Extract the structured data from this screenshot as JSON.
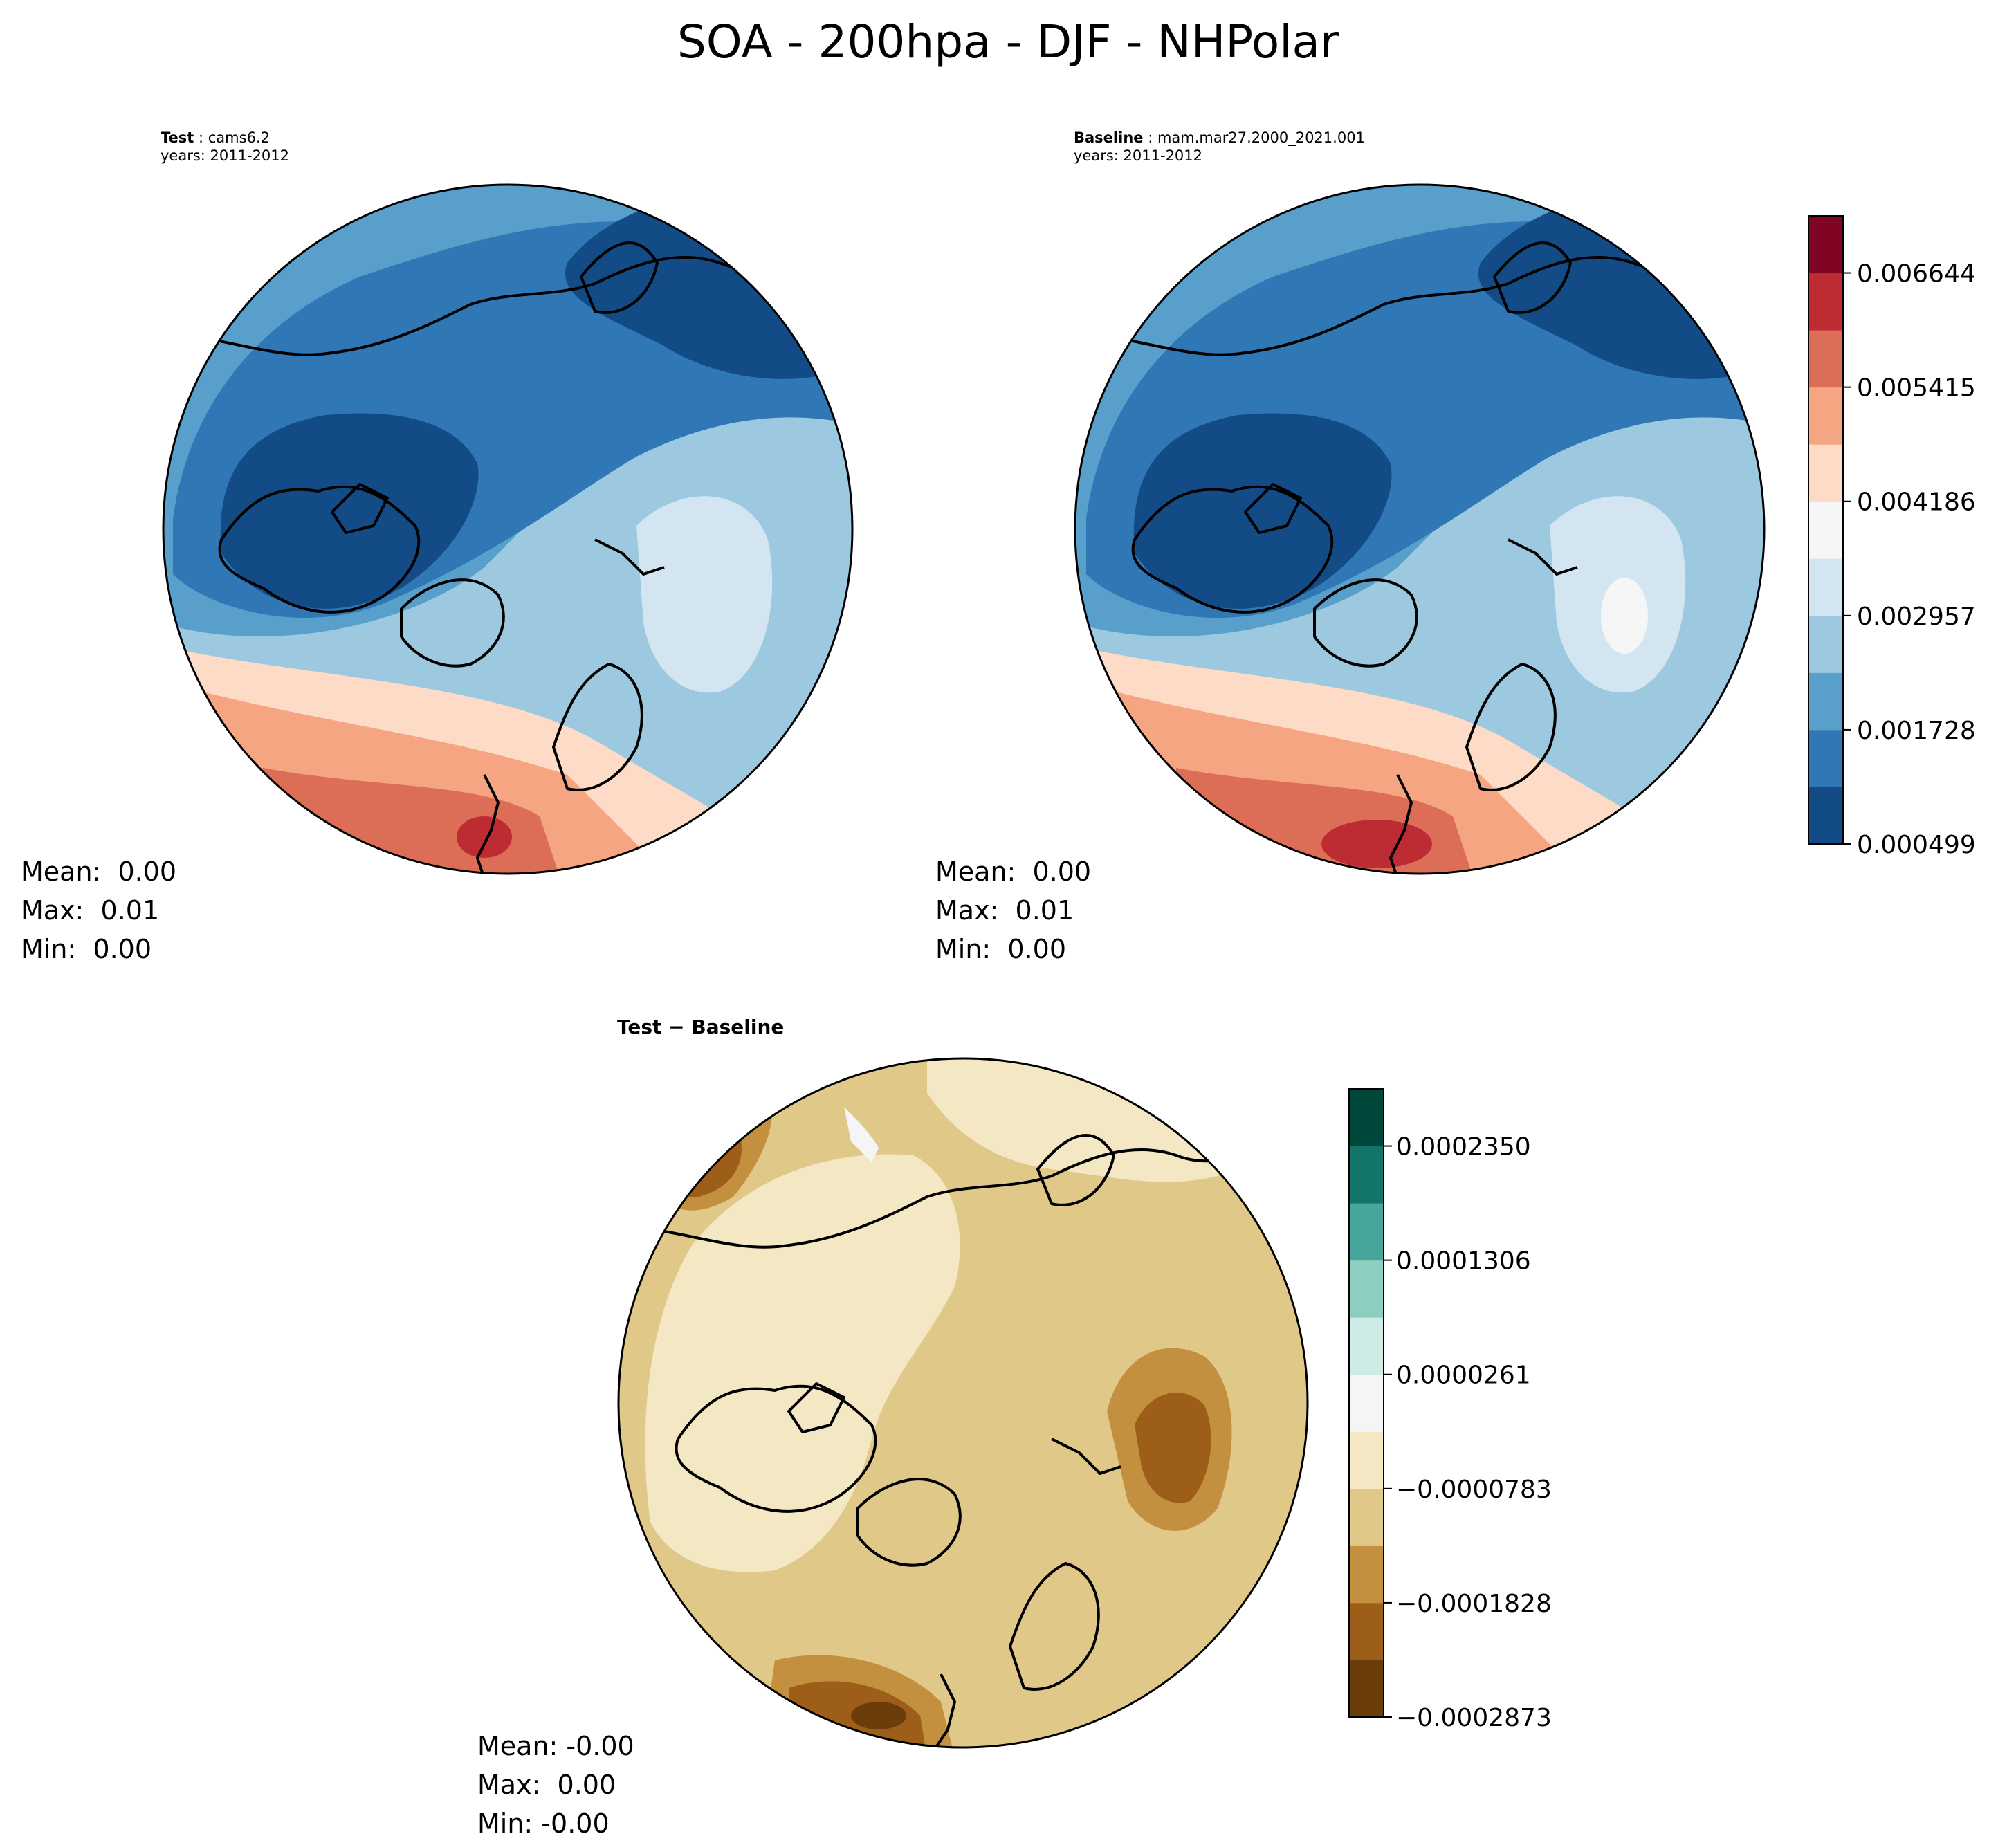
{
  "figure": {
    "title": "SOA - 200hpa - DJF - NHPolar"
  },
  "panels": {
    "test": {
      "label": "Test",
      "case": "cams6.2",
      "years": "years: 2011-2012",
      "stats": {
        "mean": "Mean:  0.00",
        "max": "Max:  0.01",
        "min": "Min:  0.00"
      }
    },
    "baseline": {
      "label": "Baseline",
      "case": "mam.mar27.2000_2021.001",
      "years": "years: 2011-2012",
      "stats": {
        "mean": "Mean:  0.00",
        "max": "Max:  0.01",
        "min": "Min:  0.00"
      }
    },
    "diff": {
      "title": "Test − Baseline",
      "stats": {
        "mean": "Mean: -0.00",
        "max": "Max:  0.00",
        "min": "Min: -0.00"
      }
    }
  },
  "chart_data": [
    {
      "type": "heatmap",
      "projection": "north-polar-stereographic",
      "field": "SOA",
      "level": "200hpa",
      "season": "DJF",
      "panel": "test",
      "colormap": "RdBu_r",
      "levels": [
        0.000499,
        0.001113,
        0.001728,
        0.002343,
        0.002957,
        0.003572,
        0.004186,
        0.0048,
        0.005415,
        0.00603,
        0.006644,
        0.007259
      ]
    },
    {
      "type": "heatmap",
      "projection": "north-polar-stereographic",
      "field": "SOA",
      "level": "200hpa",
      "season": "DJF",
      "panel": "baseline",
      "colormap": "RdBu_r",
      "levels": [
        0.000499,
        0.001113,
        0.001728,
        0.002343,
        0.002957,
        0.003572,
        0.004186,
        0.0048,
        0.005415,
        0.00603,
        0.006644,
        0.007259
      ]
    },
    {
      "type": "heatmap",
      "projection": "north-polar-stereographic",
      "field": "SOA difference",
      "panel": "diff",
      "colormap": "BrBG",
      "levels": [
        -0.0002873,
        -0.000235,
        -0.0001828,
        -0.0001306,
        -7.83e-05,
        -2.61e-05,
        2.61e-05,
        7.83e-05,
        0.0001306,
        0.0001828,
        0.000235,
        0.0002873
      ]
    }
  ],
  "colorbars": {
    "main": {
      "ticks": [
        "0.000499",
        "0.001728",
        "0.002957",
        "0.004186",
        "0.005415",
        "0.006644"
      ],
      "colors": [
        "#134b87",
        "#2f78b5",
        "#58a0cb",
        "#9dc9e0",
        "#d2e5f1",
        "#f6f6f6",
        "#fddbc7",
        "#f5a582",
        "#dc6e57",
        "#bd2c32",
        "#7f0523"
      ]
    },
    "diff": {
      "ticks": [
        "−0.0002873",
        "−0.0001828",
        "−0.0000783",
        "0.0000261",
        "0.0001306",
        "0.0002350"
      ],
      "colors": [
        "#6a3d0a",
        "#9c5e18",
        "#c3903f",
        "#e0c888",
        "#f4e7c4",
        "#f4f5f4",
        "#cfebe6",
        "#8ccfc1",
        "#48a59b",
        "#137469",
        "#00483c"
      ]
    }
  }
}
